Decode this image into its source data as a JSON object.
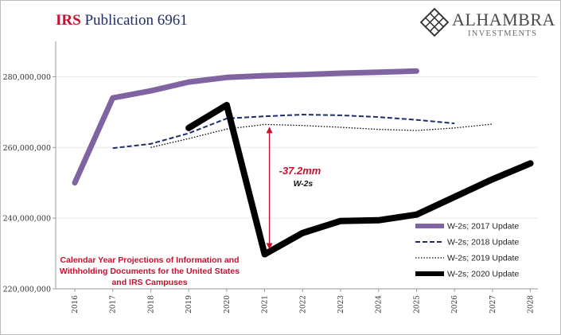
{
  "header": {
    "title_prefix": "IRS",
    "title_rest": "Publication 6961"
  },
  "brand": {
    "name": "ALHAMBRA",
    "sub": "INVESTMENTS",
    "icon": "diamond-lattice-icon"
  },
  "annotation": {
    "value": "-37.2mm",
    "unit": "W-2s",
    "color": "#c8102e"
  },
  "note": "Calendar Year Projections of Information and Withholding Documents for the United States and IRS Campuses",
  "chart_data": {
    "type": "line",
    "title": "",
    "xlabel": "",
    "ylabel": "",
    "x": [
      2016,
      2017,
      2018,
      2019,
      2020,
      2021,
      2022,
      2023,
      2024,
      2025,
      2026,
      2027,
      2028
    ],
    "ylim": [
      220000000,
      290000000
    ],
    "yticks": [
      220000000,
      240000000,
      260000000,
      280000000
    ],
    "ytick_labels": [
      "220,000,000",
      "240,000,000",
      "260,000,000",
      "280,000,000"
    ],
    "grid": true,
    "legend_position": "lower-right",
    "series": [
      {
        "name": "W-2s; 2017 Update",
        "style": "solid-thick",
        "color": "#8064a2",
        "x": [
          2016,
          2017,
          2018,
          2019,
          2020,
          2021,
          2022,
          2023,
          2024,
          2025
        ],
        "values": [
          250000000,
          274000000,
          276000000,
          278500000,
          279800000,
          280300000,
          280600000,
          281000000,
          281300000,
          281600000
        ]
      },
      {
        "name": "W-2s; 2018 Update",
        "style": "dashed",
        "color": "#1f2d6b",
        "x": [
          2017,
          2018,
          2019,
          2020,
          2021,
          2022,
          2023,
          2024,
          2025,
          2026
        ],
        "values": [
          259800000,
          261000000,
          264000000,
          268200000,
          268800000,
          269300000,
          269100000,
          268600000,
          267800000,
          266800000
        ]
      },
      {
        "name": "W-2s; 2019 Update",
        "style": "dotted",
        "color": "#000000",
        "x": [
          2018,
          2019,
          2020,
          2021,
          2022,
          2023,
          2024,
          2025,
          2026,
          2027
        ],
        "values": [
          260000000,
          262500000,
          265200000,
          266500000,
          266200000,
          265700000,
          265100000,
          264800000,
          265500000,
          266600000
        ]
      },
      {
        "name": "W-2s; 2020 Update",
        "style": "solid-heavy",
        "color": "#000000",
        "x": [
          2019,
          2020,
          2021,
          2022,
          2023,
          2024,
          2025,
          2026,
          2027,
          2028
        ],
        "values": [
          265500000,
          272000000,
          229800000,
          235800000,
          239200000,
          239400000,
          241000000,
          246000000,
          251000000,
          255500000
        ]
      }
    ]
  }
}
